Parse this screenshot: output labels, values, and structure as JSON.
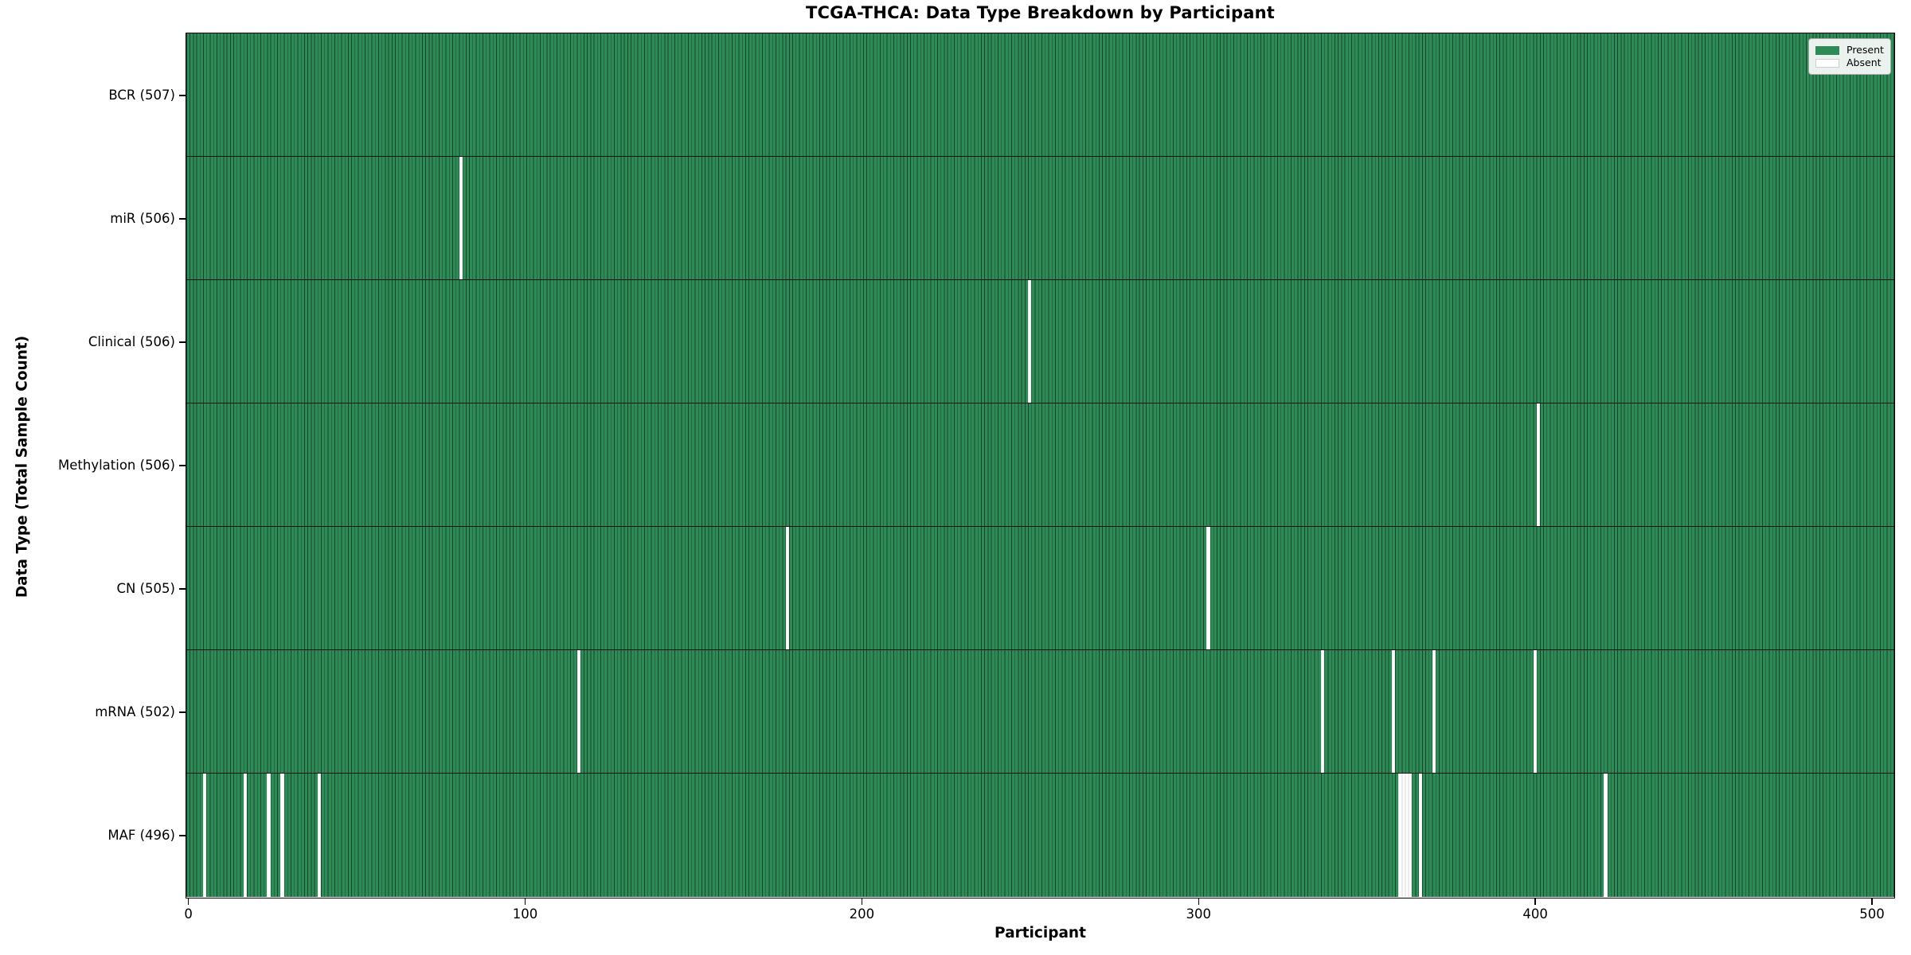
{
  "chart_data": {
    "type": "heatmap",
    "title": "TCGA-THCA: Data Type Breakdown by Participant",
    "xlabel": "Participant",
    "ylabel": "Data Type (Total Sample Count)",
    "x_ticks": [
      0,
      100,
      200,
      300,
      400,
      500
    ],
    "x_range": [
      0,
      507
    ],
    "n_participants": 507,
    "grid": false,
    "legend_position": "upper right",
    "legend_entries": [
      {
        "label": "Present",
        "color": "#2e8b57"
      },
      {
        "label": "Absent",
        "color": "#ffffff"
      }
    ],
    "colors": {
      "present": "#2e8b57",
      "absent": "#ffffff",
      "bar_edge": "#000000"
    },
    "rows": [
      {
        "name": "bcr",
        "label": "BCR (507)",
        "total": 507,
        "absent_participants": []
      },
      {
        "name": "mir",
        "label": "miR (506)",
        "total": 506,
        "absent_participants": [
          81
        ]
      },
      {
        "name": "clinical",
        "label": "Clinical (506)",
        "total": 506,
        "absent_participants": [
          250
        ]
      },
      {
        "name": "methylation",
        "label": "Methylation (506)",
        "total": 506,
        "absent_participants": [
          401
        ]
      },
      {
        "name": "cn",
        "label": "CN (505)",
        "total": 505,
        "absent_participants": [
          178,
          303
        ]
      },
      {
        "name": "mrna",
        "label": "mRNA (502)",
        "total": 502,
        "absent_participants": [
          116,
          337,
          358,
          370,
          400
        ]
      },
      {
        "name": "maf",
        "label": "MAF (496)",
        "total": 496,
        "absent_participants": [
          5,
          17,
          24,
          28,
          39,
          360,
          361,
          362,
          363,
          366,
          421
        ]
      }
    ]
  }
}
